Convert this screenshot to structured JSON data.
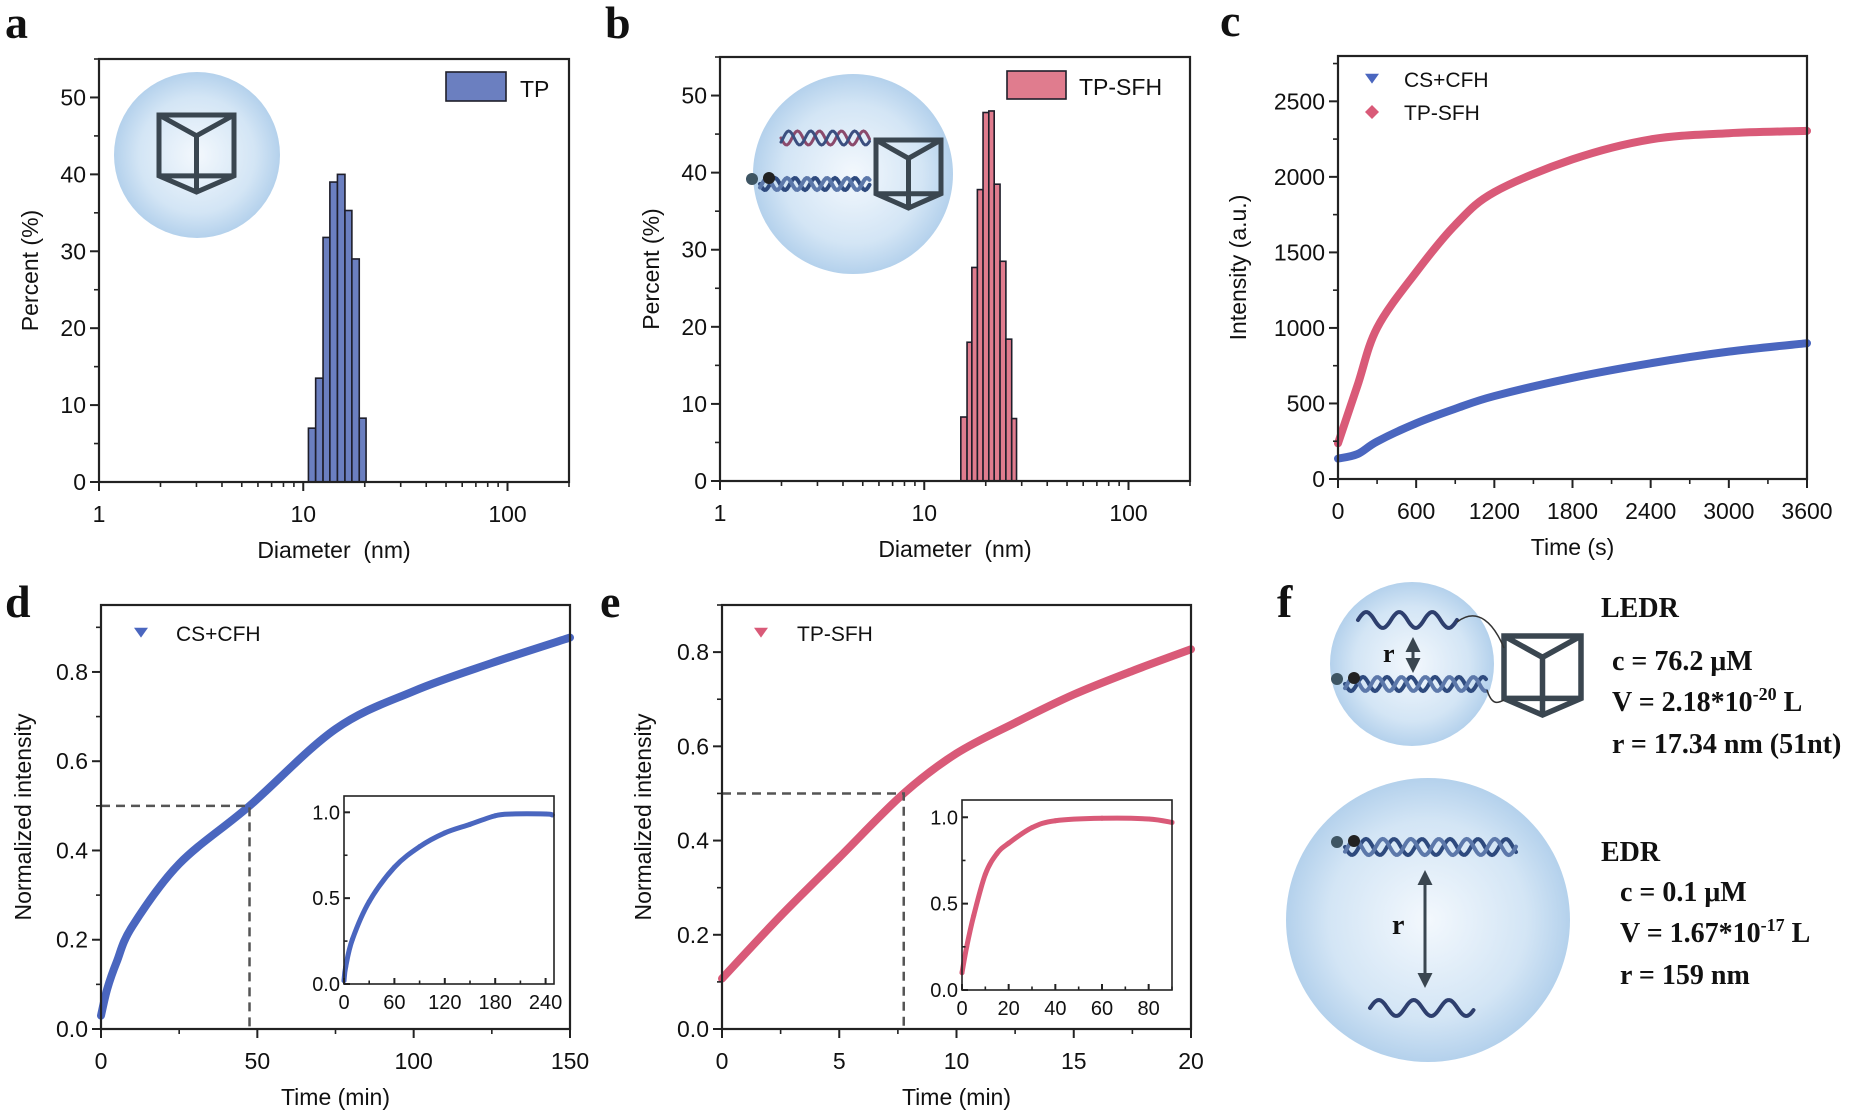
{
  "chart_data": [
    {
      "panel": "a",
      "type": "bar",
      "xscale": "log",
      "xlim": [
        1,
        200
      ],
      "ylim": [
        0,
        55
      ],
      "xticks": [
        1,
        10,
        100
      ],
      "xtick_labels": [
        "1",
        "10",
        "100"
      ],
      "yticks": [
        0,
        10,
        20,
        30,
        40,
        50
      ],
      "ytick_labels": [
        "0",
        "10",
        "20",
        "30",
        "40",
        "50"
      ],
      "xlabel": "Diameter  (nm)",
      "ylabel": "Percent (%)",
      "legend": "top-right",
      "grid": false,
      "series": [
        {
          "name": "TP",
          "color": "#6b7fc0",
          "bin_edges": [
            10.6,
            11.5,
            12.5,
            13.5,
            14.7,
            16.0,
            17.3,
            18.8,
            20.3
          ],
          "values": [
            7.0,
            13.5,
            31.8,
            39.0,
            40.0,
            35.3,
            29.0,
            8.3
          ]
        }
      ]
    },
    {
      "panel": "b",
      "type": "bar",
      "xscale": "log",
      "xlim": [
        1,
        200
      ],
      "ylim": [
        0,
        55
      ],
      "xticks": [
        1,
        10,
        100
      ],
      "xtick_labels": [
        "1",
        "10",
        "100"
      ],
      "yticks": [
        0,
        10,
        20,
        30,
        40,
        50
      ],
      "ytick_labels": [
        "0",
        "10",
        "20",
        "30",
        "40",
        "50"
      ],
      "xlabel": "Diameter  (nm)",
      "ylabel": "Percent (%)",
      "legend": "top-right",
      "grid": false,
      "series": [
        {
          "name": "TP-SFH",
          "color": "#e07c8e",
          "bin_edges": [
            15.1,
            16.2,
            17.1,
            18.2,
            19.4,
            20.7,
            22.0,
            23.5,
            25.1,
            26.8,
            28.3
          ],
          "values": [
            8.3,
            18.0,
            27.7,
            37.8,
            47.8,
            48.0,
            38.5,
            28.5,
            18.4,
            8.1
          ]
        }
      ]
    },
    {
      "panel": "c",
      "type": "scatter",
      "xlim": [
        0,
        3600
      ],
      "ylim": [
        0,
        2800
      ],
      "xticks": [
        0,
        600,
        1200,
        1800,
        2400,
        3000,
        3600
      ],
      "xtick_labels": [
        "0",
        "600",
        "1200",
        "1800",
        "2400",
        "3000",
        "3600"
      ],
      "yticks": [
        0,
        500,
        1000,
        1500,
        2000,
        2500
      ],
      "ytick_labels": [
        "0",
        "500",
        "1000",
        "1500",
        "2000",
        "2500"
      ],
      "xlabel": "Time (s)",
      "ylabel": "Intensity (a.u.)",
      "legend": "top-left",
      "grid": false,
      "series": [
        {
          "name": "CS+CFH",
          "marker": "triangle-down",
          "color": "#4a66bf",
          "x": [
            0,
            150,
            300,
            600,
            900,
            1200,
            1800,
            2400,
            3000,
            3600
          ],
          "y": [
            135,
            165,
            248,
            369,
            465,
            549,
            670,
            766,
            843,
            899
          ]
        },
        {
          "name": "TP-SFH",
          "marker": "diamond",
          "color": "#d95a78",
          "x": [
            0,
            150,
            300,
            600,
            900,
            1200,
            1800,
            2400,
            3000,
            3600
          ],
          "y": [
            236,
            620,
            1000,
            1369,
            1682,
            1899,
            2116,
            2248,
            2289,
            2304
          ]
        }
      ]
    },
    {
      "panel": "d",
      "type": "scatter",
      "xlim": [
        0,
        150
      ],
      "ylim": [
        0,
        0.95
      ],
      "xticks": [
        0,
        50,
        100,
        150
      ],
      "xtick_labels": [
        "0",
        "50",
        "100",
        "150"
      ],
      "yticks": [
        0,
        0.2,
        0.4,
        0.6,
        0.8
      ],
      "ytick_labels": [
        "0.0",
        "0.2",
        "0.4",
        "0.6",
        "0.8"
      ],
      "xlabel": "Time (min)",
      "ylabel": "Normalized intensity",
      "legend": "top-left",
      "grid": false,
      "reference_lines": {
        "y": 0.5,
        "x": 47.5,
        "style": "dashed"
      },
      "series": [
        {
          "name": "CS+CFH",
          "marker": "triangle-down",
          "color": "#4a66bf",
          "x": [
            0,
            2,
            5,
            10,
            25,
            47.5,
            75,
            100,
            125,
            150
          ],
          "y": [
            0.03,
            0.09,
            0.15,
            0.23,
            0.37,
            0.5,
            0.672,
            0.757,
            0.82,
            0.877
          ]
        }
      ]
    },
    {
      "type": "line",
      "inset_of": "d",
      "xlim": [
        0,
        250
      ],
      "ylim": [
        0,
        1.095
      ],
      "xticks": [
        0,
        60,
        120,
        180,
        240
      ],
      "xtick_labels": [
        "0",
        "60",
        "120",
        "180",
        "240"
      ],
      "yticks": [
        0,
        0.5,
        1.0
      ],
      "ytick_labels": [
        "0.0",
        "0.5",
        "1.0"
      ],
      "series": [
        {
          "color": "#4a66bf",
          "x": [
            0,
            2,
            10,
            30,
            60,
            90,
            120,
            150,
            180,
            200,
            240,
            248
          ],
          "y": [
            0.02,
            0.1,
            0.26,
            0.48,
            0.68,
            0.8,
            0.88,
            0.93,
            0.98,
            0.99,
            0.99,
            0.985
          ]
        }
      ]
    },
    {
      "panel": "e",
      "type": "scatter",
      "xlim": [
        0,
        20
      ],
      "ylim": [
        0,
        0.9
      ],
      "xticks": [
        0,
        5,
        10,
        15,
        20
      ],
      "xtick_labels": [
        "0",
        "5",
        "10",
        "15",
        "20"
      ],
      "yticks": [
        0,
        0.2,
        0.4,
        0.6,
        0.8
      ],
      "ytick_labels": [
        "0.0",
        "0.2",
        "0.4",
        "0.6",
        "0.8"
      ],
      "xlabel": "Time (min)",
      "ylabel": "Normalized intensity",
      "legend": "top-left",
      "grid": false,
      "reference_lines": {
        "y": 0.5,
        "x": 7.75,
        "style": "dashed"
      },
      "series": [
        {
          "name": "TP-SFH",
          "marker": "triangle-down",
          "color": "#d95a78",
          "x": [
            0,
            2.5,
            5,
            7.75,
            10,
            12.5,
            15,
            17.5,
            20
          ],
          "y": [
            0.107,
            0.24,
            0.364,
            0.5,
            0.585,
            0.65,
            0.71,
            0.76,
            0.806
          ]
        }
      ]
    },
    {
      "type": "line",
      "inset_of": "e",
      "xlim": [
        0,
        90
      ],
      "ylim": [
        0,
        1.1
      ],
      "xticks": [
        0,
        20,
        40,
        60,
        80
      ],
      "xtick_labels": [
        "0",
        "20",
        "40",
        "60",
        "80"
      ],
      "yticks": [
        0,
        0.5,
        1.0
      ],
      "ytick_labels": [
        "0.0",
        "0.5",
        "1.0"
      ],
      "series": [
        {
          "color": "#d95a78",
          "x": [
            0,
            2,
            5,
            10,
            15,
            20,
            30,
            40,
            60,
            80,
            90
          ],
          "y": [
            0.1,
            0.25,
            0.43,
            0.67,
            0.79,
            0.85,
            0.94,
            0.98,
            0.994,
            0.99,
            0.97
          ]
        }
      ]
    }
  ],
  "panel_f": {
    "label": "f",
    "arrow_label": "r",
    "ledr": {
      "title": "LEDR",
      "c": "c = 76.2 μM",
      "v_base": "V = 2.18*10",
      "v_exp": "-20",
      "v_unit": " L",
      "r": "r = 17.34 nm (51nt)"
    },
    "edr": {
      "title": "EDR",
      "c": "c = 0.1 μM",
      "v_base": "V = 1.67*10",
      "v_exp": "-17",
      "v_unit": " L",
      "r": "r = 159 nm"
    }
  },
  "colors": {
    "blue": "#4a66bf",
    "red": "#d95a78",
    "sphere": "#b6d3ee",
    "cube": "#3a4650",
    "dna": "#2e3f6e"
  }
}
